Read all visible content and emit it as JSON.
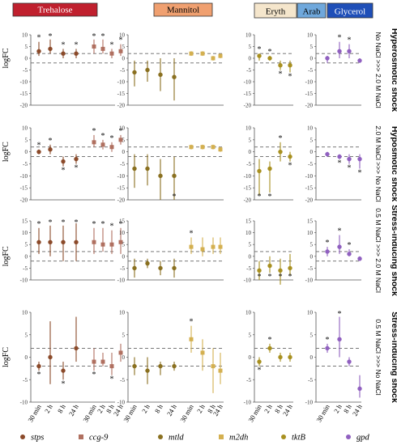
{
  "chart_data": {
    "type": "scatter",
    "title": "",
    "ylabel": "logFC",
    "time_labels": [
      "30 min",
      "2 h",
      "8 h",
      "24 h"
    ],
    "groups": [
      {
        "label": "Trehalose",
        "color": "#c0202e",
        "text_color": "#ffffff"
      },
      {
        "label": "Mannitol",
        "color": "#f0a070",
        "text_color": "#000000"
      },
      {
        "label": "Eryth",
        "color": "#f5e6cc",
        "text_color": "#000000"
      },
      {
        "label": "Arab",
        "color": "#6fa8dc",
        "text_color": "#000000"
      },
      {
        "label": "Glycerol",
        "color": "#1f4fb8",
        "text_color": "#ffffff"
      }
    ],
    "legend": [
      {
        "label": "stps",
        "color": "#8b4a2a",
        "shape": "circle"
      },
      {
        "label": "ccg-9",
        "color": "#b07060",
        "shape": "square"
      },
      {
        "label": "mtld",
        "color": "#8a7020",
        "shape": "circle"
      },
      {
        "label": "m2dh",
        "color": "#d4b050",
        "shape": "square"
      },
      {
        "label": "tktB",
        "color": "#a89020",
        "shape": "circle"
      },
      {
        "label": "gpd",
        "color": "#9060c0",
        "shape": "circle"
      }
    ],
    "rows": [
      {
        "title": "Hyperosmotic shock",
        "subtitle": "No NaCl >>> 2.0 M NaCl",
        "ylim": [
          -20,
          10
        ],
        "ticks": [
          "10",
          "5",
          "0",
          "-5",
          "-10",
          "-15",
          "-20"
        ]
      },
      {
        "title": "Hyposmotic shock",
        "subtitle": "2.0 M NaCl >>> No NaCl",
        "ylim": [
          -20,
          10
        ],
        "ticks": [
          "10",
          "5",
          "0",
          "-5",
          "-10",
          "-15",
          "-20"
        ]
      },
      {
        "title": "Stress-inducing shock",
        "subtitle": "0.5 M NaCl >>> 2.0 M NaCl",
        "ylim": [
          -10,
          15
        ],
        "ticks": [
          "15",
          "10",
          "5",
          "0",
          "-5",
          "-10"
        ]
      },
      {
        "title": "Stress-inducing shock",
        "subtitle": "0.5 M NaCl >>> No NaCl",
        "ylim": [
          -10,
          10
        ],
        "ticks": [
          "10",
          "5",
          "0",
          "-5",
          "-10"
        ]
      }
    ],
    "reference_lines": [
      -2,
      2
    ],
    "panels": [
      {
        "row": 0,
        "col": 0,
        "series": [
          {
            "gene": "stps",
            "values": [
              3,
              4,
              2,
              2
            ],
            "lower": [
              1,
              2,
              0,
              0
            ],
            "upper": [
              7,
              8,
              4,
              4
            ],
            "sig": [
              true,
              true,
              true,
              true
            ]
          },
          {
            "gene": "ccg-9",
            "values": [
              5,
              4,
              2,
              3
            ],
            "lower": [
              2,
              2,
              0,
              1
            ],
            "upper": [
              8,
              8,
              4,
              6
            ],
            "sig": [
              true,
              true,
              true,
              true
            ]
          }
        ]
      },
      {
        "row": 0,
        "col": 1,
        "series": [
          {
            "gene": "mtld",
            "values": [
              -6,
              -5,
              -7,
              -8
            ],
            "lower": [
              -12,
              -10,
              -14,
              -18
            ],
            "upper": [
              -1,
              -1,
              0,
              0
            ],
            "sig": [
              false,
              false,
              false,
              false
            ]
          },
          {
            "gene": "m2dh",
            "values": [
              2,
              2,
              0,
              1
            ],
            "lower": [
              1,
              1,
              -1,
              0
            ],
            "upper": [
              3,
              3,
              1,
              2
            ],
            "sig": [
              false,
              false,
              false,
              false
            ]
          }
        ]
      },
      {
        "row": 0,
        "col": 2,
        "series": [
          {
            "gene": "tktB",
            "values": [
              1,
              0,
              -3,
              -3
            ],
            "lower": [
              -1,
              -1,
              -5,
              -6
            ],
            "upper": [
              2,
              1,
              -1,
              -1
            ],
            "sig": [
              true,
              true,
              true,
              true
            ]
          }
        ]
      },
      {
        "row": 0,
        "col": 3,
        "series": [
          {
            "gene": "gpd",
            "values": [
              0,
              3,
              3,
              -1
            ],
            "lower": [
              -2,
              0,
              0,
              -2
            ],
            "upper": [
              1,
              7,
              6,
              0
            ],
            "sig": [
              false,
              true,
              true,
              false
            ]
          }
        ]
      },
      {
        "row": 1,
        "col": 0,
        "series": [
          {
            "gene": "stps",
            "values": [
              0,
              1,
              -4,
              -3
            ],
            "lower": [
              -1,
              -1,
              -6,
              -5
            ],
            "upper": [
              1,
              3,
              -2,
              -1
            ],
            "sig": [
              true,
              true,
              true,
              true
            ]
          },
          {
            "gene": "ccg-9",
            "values": [
              4,
              3,
              2,
              5
            ],
            "lower": [
              2,
              1,
              0,
              3
            ],
            "upper": [
              7,
              5,
              4,
              7
            ],
            "sig": [
              true,
              true,
              true,
              true
            ]
          }
        ]
      },
      {
        "row": 1,
        "col": 1,
        "series": [
          {
            "gene": "mtld",
            "values": [
              -7,
              -7,
              -10,
              -10
            ],
            "lower": [
              -15,
              -14,
              -20,
              -20
            ],
            "upper": [
              -1,
              -1,
              -3,
              -2
            ],
            "sig": [
              false,
              false,
              false,
              true
            ]
          },
          {
            "gene": "m2dh",
            "values": [
              2,
              2,
              2,
              1
            ],
            "lower": [
              1,
              1,
              1,
              0
            ],
            "upper": [
              3,
              3,
              3,
              2
            ],
            "sig": [
              false,
              false,
              false,
              false
            ]
          }
        ]
      },
      {
        "row": 1,
        "col": 2,
        "series": [
          {
            "gene": "tktB",
            "values": [
              -8,
              -7,
              0,
              -2
            ],
            "lower": [
              -18,
              -17,
              -4,
              -4
            ],
            "upper": [
              -3,
              -4,
              4,
              0
            ],
            "sig": [
              true,
              true,
              true,
              true
            ]
          }
        ]
      },
      {
        "row": 1,
        "col": 3,
        "series": [
          {
            "gene": "gpd",
            "values": [
              -1,
              -2,
              -3,
              -3
            ],
            "lower": [
              -2,
              -3,
              -5,
              -7
            ],
            "upper": [
              0,
              -1,
              -1,
              -1
            ],
            "sig": [
              false,
              true,
              true,
              true
            ]
          }
        ]
      },
      {
        "row": 2,
        "col": 0,
        "series": [
          {
            "gene": "stps",
            "values": [
              6,
              6,
              6,
              6
            ],
            "lower": [
              1,
              0,
              -2,
              -2
            ],
            "upper": [
              12,
              13,
              13,
              14
            ],
            "sig": [
              true,
              true,
              true,
              true
            ]
          },
          {
            "gene": "ccg-9",
            "values": [
              6,
              5,
              5,
              6
            ],
            "lower": [
              1,
              2,
              1,
              1
            ],
            "upper": [
              12,
              12,
              11,
              12
            ],
            "sig": [
              true,
              true,
              true,
              true
            ]
          }
        ]
      },
      {
        "row": 2,
        "col": 1,
        "series": [
          {
            "gene": "mtld",
            "values": [
              -5,
              -3,
              -5,
              -5
            ],
            "lower": [
              -9,
              -5,
              -8,
              -9
            ],
            "upper": [
              -1,
              -1,
              -2,
              -1
            ],
            "sig": [
              false,
              false,
              false,
              false
            ]
          },
          {
            "gene": "m2dh",
            "values": [
              4,
              3,
              4,
              4
            ],
            "lower": [
              1,
              0,
              1,
              1
            ],
            "upper": [
              8,
              8,
              8,
              8
            ],
            "sig": [
              true,
              false,
              false,
              false
            ]
          }
        ]
      },
      {
        "row": 2,
        "col": 2,
        "series": [
          {
            "gene": "tktB",
            "values": [
              -6,
              -4,
              -6,
              -5
            ],
            "lower": [
              -10,
              -7,
              -12,
              -8
            ],
            "upper": [
              -2,
              0,
              -1,
              1
            ],
            "sig": [
              true,
              true,
              true,
              true
            ]
          }
        ]
      },
      {
        "row": 2,
        "col": 3,
        "series": [
          {
            "gene": "gpd",
            "values": [
              2,
              4,
              1,
              -1
            ],
            "lower": [
              0,
              1,
              0,
              -2
            ],
            "upper": [
              4,
              9,
              3,
              0
            ],
            "sig": [
              true,
              true,
              true,
              false
            ]
          }
        ]
      },
      {
        "row": 3,
        "col": 0,
        "series": [
          {
            "gene": "stps",
            "values": [
              -2,
              0,
              -3,
              2
            ],
            "lower": [
              -3,
              -6,
              -5,
              -1
            ],
            "upper": [
              -1,
              8,
              -1,
              9
            ],
            "sig": [
              true,
              false,
              true,
              false
            ]
          },
          {
            "gene": "ccg-9",
            "values": [
              -1,
              -1,
              -2,
              1
            ],
            "lower": [
              -3,
              -2,
              -4,
              -1
            ],
            "upper": [
              2,
              1,
              1,
              3
            ],
            "sig": [
              true,
              false,
              true,
              false
            ]
          }
        ]
      },
      {
        "row": 3,
        "col": 1,
        "series": [
          {
            "gene": "mtld",
            "values": [
              -2,
              -3,
              -2,
              -2
            ],
            "lower": [
              -4,
              -6,
              -4,
              -3
            ],
            "upper": [
              0,
              0,
              -1,
              -1
            ],
            "sig": [
              false,
              false,
              false,
              false
            ]
          },
          {
            "gene": "m2dh",
            "values": [
              4,
              1,
              -2,
              -3
            ],
            "lower": [
              1,
              -3,
              -8,
              -6
            ],
            "upper": [
              7,
              4,
              2,
              1
            ],
            "sig": [
              true,
              false,
              false,
              false
            ]
          }
        ]
      },
      {
        "row": 3,
        "col": 2,
        "series": [
          {
            "gene": "tktB",
            "values": [
              -1,
              2,
              0,
              0
            ],
            "lower": [
              -2,
              1,
              -1,
              -1
            ],
            "upper": [
              0,
              3,
              1,
              1
            ],
            "sig": [
              true,
              true,
              false,
              false
            ]
          }
        ]
      },
      {
        "row": 3,
        "col": 3,
        "series": [
          {
            "gene": "gpd",
            "values": [
              2,
              4,
              -1,
              -7
            ],
            "lower": [
              1,
              0,
              -2,
              -9
            ],
            "upper": [
              3,
              9,
              0,
              -4
            ],
            "sig": [
              true,
              true,
              false,
              false
            ]
          }
        ]
      }
    ]
  }
}
